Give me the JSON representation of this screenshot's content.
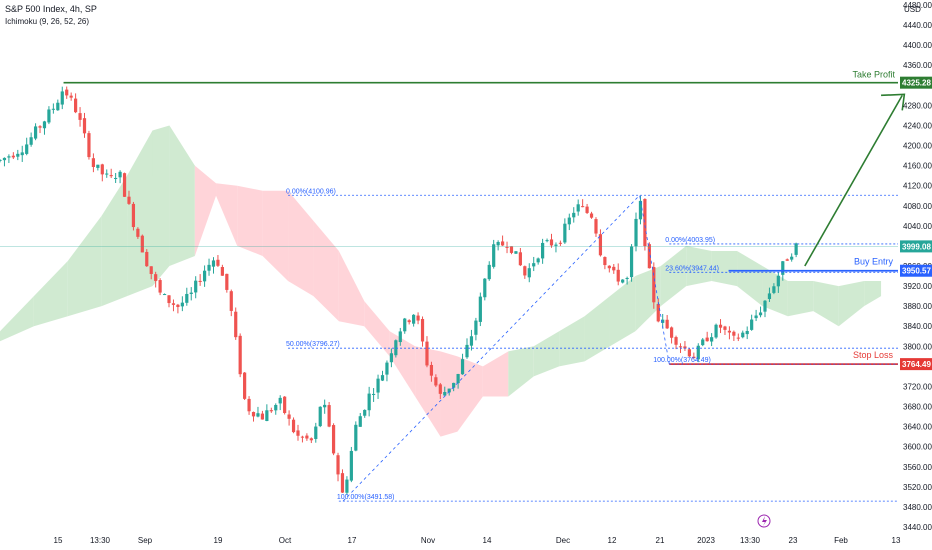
{
  "header": {
    "symbol": "S&P 500 Index, 4h, SP",
    "indicator": "Ichimoku (9, 26, 52, 26)"
  },
  "colors": {
    "up": "#26a69a",
    "down": "#ef5350",
    "green_line": "#2e7d32",
    "blue_line": "#2962ff",
    "red_line": "#e53935",
    "fib": "#2962ff",
    "cloud_bull": "#c8e6c9",
    "cloud_bear": "#ffcdd2"
  },
  "chart_data": {
    "type": "candlestick",
    "y_axis_label": "USD",
    "y_ticks": [
      3440,
      3480,
      3520,
      3560,
      3600,
      3640,
      3680,
      3720,
      3760,
      3800,
      3840,
      3880,
      3920,
      3960,
      4000,
      4040,
      4080,
      4120,
      4160,
      4200,
      4240,
      4280,
      4320,
      4360,
      4400,
      4440,
      4480
    ],
    "ylim": [
      3430,
      4490
    ],
    "x_ticks": [
      "15",
      "13:30",
      "Sep",
      "19",
      "Oct",
      "17",
      "Nov",
      "14",
      "Dec",
      "12",
      "21",
      "2023",
      "13:30",
      "23",
      "Feb",
      "13"
    ],
    "price_labels": [
      {
        "name": "Take Profit",
        "value": 4325.28,
        "color": "#2e7d32"
      },
      {
        "name": "Current",
        "value": 3999.08,
        "color": "#26a69a"
      },
      {
        "name": "Buy Entry",
        "value": 3950.57,
        "color": "#2962ff"
      },
      {
        "name": "Stop Loss",
        "value": 3764.49,
        "color": "#e53935"
      }
    ],
    "fib_levels_1": [
      {
        "label": "0.00%(4100.96)",
        "value": 4100.96
      },
      {
        "label": "50.00%(3796.27)",
        "value": 3796.27
      },
      {
        "label": "100.00%(3491.58)",
        "value": 3491.58
      }
    ],
    "fib_levels_2": [
      {
        "label": "0.00%(4003.95)",
        "value": 4003.95
      },
      {
        "label": "23.60%(3947.44)",
        "value": 3947.44
      },
      {
        "label": "100.00%(3764.49)",
        "value": 3764.49
      }
    ],
    "path": [
      {
        "x": 0,
        "y": 4170
      },
      {
        "x": 6,
        "y": 4200
      },
      {
        "x": 13,
        "y": 4280
      },
      {
        "x": 15,
        "y": 4315
      },
      {
        "x": 18,
        "y": 4270
      },
      {
        "x": 22,
        "y": 4160
      },
      {
        "x": 26,
        "y": 4130
      },
      {
        "x": 28,
        "y": 4150
      },
      {
        "x": 31,
        "y": 4060
      },
      {
        "x": 35,
        "y": 3960
      },
      {
        "x": 38,
        "y": 3900
      },
      {
        "x": 42,
        "y": 3880
      },
      {
        "x": 45,
        "y": 3900
      },
      {
        "x": 48,
        "y": 3950
      },
      {
        "x": 51,
        "y": 3980
      },
      {
        "x": 54,
        "y": 3900
      },
      {
        "x": 58,
        "y": 3680
      },
      {
        "x": 62,
        "y": 3660
      },
      {
        "x": 66,
        "y": 3690
      },
      {
        "x": 70,
        "y": 3620
      },
      {
        "x": 74,
        "y": 3610
      },
      {
        "x": 76,
        "y": 3700
      },
      {
        "x": 78,
        "y": 3620
      },
      {
        "x": 81,
        "y": 3500
      },
      {
        "x": 84,
        "y": 3640
      },
      {
        "x": 87,
        "y": 3700
      },
      {
        "x": 90,
        "y": 3740
      },
      {
        "x": 94,
        "y": 3830
      },
      {
        "x": 98,
        "y": 3870
      },
      {
        "x": 101,
        "y": 3760
      },
      {
        "x": 104,
        "y": 3700
      },
      {
        "x": 108,
        "y": 3740
      },
      {
        "x": 112,
        "y": 3840
      },
      {
        "x": 116,
        "y": 3990
      },
      {
        "x": 120,
        "y": 4010
      },
      {
        "x": 124,
        "y": 3940
      },
      {
        "x": 128,
        "y": 4000
      },
      {
        "x": 132,
        "y": 4010
      },
      {
        "x": 136,
        "y": 4080
      },
      {
        "x": 140,
        "y": 4060
      },
      {
        "x": 142,
        "y": 3980
      },
      {
        "x": 145,
        "y": 3940
      },
      {
        "x": 148,
        "y": 3930
      },
      {
        "x": 151,
        "y": 4095
      },
      {
        "x": 153,
        "y": 3960
      },
      {
        "x": 155,
        "y": 3860
      },
      {
        "x": 158,
        "y": 3830
      },
      {
        "x": 161,
        "y": 3800
      },
      {
        "x": 164,
        "y": 3780
      },
      {
        "x": 167,
        "y": 3820
      },
      {
        "x": 170,
        "y": 3840
      },
      {
        "x": 173,
        "y": 3810
      },
      {
        "x": 176,
        "y": 3830
      },
      {
        "x": 180,
        "y": 3880
      },
      {
        "x": 183,
        "y": 3930
      },
      {
        "x": 186,
        "y": 3980
      },
      {
        "x": 188,
        "y": 4000
      }
    ],
    "cloud": [
      {
        "x": 0,
        "y1": 3810,
        "y2": 3830
      },
      {
        "x": 8,
        "y1": 3840,
        "y2": 3900
      },
      {
        "x": 16,
        "y1": 3860,
        "y2": 3970
      },
      {
        "x": 24,
        "y1": 3880,
        "y2": 4060
      },
      {
        "x": 30,
        "y1": 3900,
        "y2": 4140
      },
      {
        "x": 36,
        "y1": 3920,
        "y2": 4230
      },
      {
        "x": 40,
        "y1": 3960,
        "y2": 4240
      },
      {
        "x": 46,
        "y1": 3980,
        "y2": 4160
      },
      {
        "x": 51,
        "y1": 4100,
        "y2": 4125
      },
      {
        "x": 56,
        "y1": 4000,
        "y2": 4120
      },
      {
        "x": 62,
        "y1": 3980,
        "y2": 4110
      },
      {
        "x": 68,
        "y1": 3930,
        "y2": 4110
      },
      {
        "x": 74,
        "y1": 3900,
        "y2": 4050
      },
      {
        "x": 80,
        "y1": 3850,
        "y2": 3990
      },
      {
        "x": 86,
        "y1": 3840,
        "y2": 3890
      },
      {
        "x": 92,
        "y1": 3780,
        "y2": 3830
      },
      {
        "x": 98,
        "y1": 3700,
        "y2": 3800
      },
      {
        "x": 104,
        "y1": 3620,
        "y2": 3790
      },
      {
        "x": 108,
        "y1": 3630,
        "y2": 3780
      },
      {
        "x": 114,
        "y1": 3700,
        "y2": 3760
      },
      {
        "x": 120,
        "y1": 3700,
        "y2": 3790
      },
      {
        "x": 126,
        "y1": 3740,
        "y2": 3800
      },
      {
        "x": 132,
        "y1": 3760,
        "y2": 3830
      },
      {
        "x": 138,
        "y1": 3770,
        "y2": 3860
      },
      {
        "x": 144,
        "y1": 3800,
        "y2": 3900
      },
      {
        "x": 150,
        "y1": 3830,
        "y2": 3940
      },
      {
        "x": 156,
        "y1": 3880,
        "y2": 3960
      },
      {
        "x": 162,
        "y1": 3920,
        "y2": 4000
      },
      {
        "x": 168,
        "y1": 3930,
        "y2": 3990
      },
      {
        "x": 174,
        "y1": 3920,
        "y2": 3990
      },
      {
        "x": 180,
        "y1": 3880,
        "y2": 3960
      },
      {
        "x": 186,
        "y1": 3860,
        "y2": 3930
      },
      {
        "x": 192,
        "y1": 3870,
        "y2": 3930
      },
      {
        "x": 198,
        "y1": 3840,
        "y2": 3920
      },
      {
        "x": 204,
        "y1": 3880,
        "y2": 3930
      },
      {
        "x": 208,
        "y1": 3900,
        "y2": 3930
      }
    ],
    "x_range": [
      0,
      212
    ]
  }
}
